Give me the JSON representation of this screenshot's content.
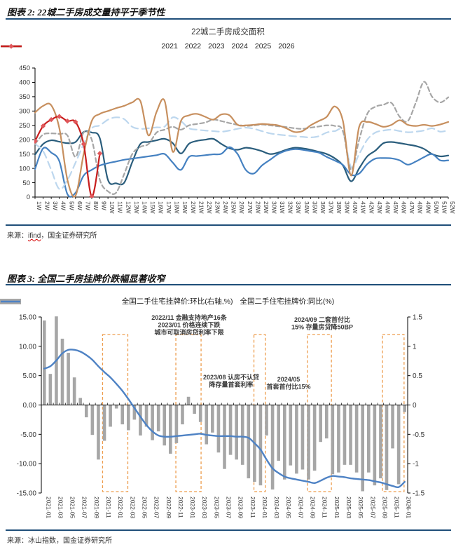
{
  "figure2": {
    "header": "图表 2: 22城二手房成交量持平于季节性",
    "source_prefix": "来源：",
    "source_name": "ifind",
    "source_suffix": "，国金证券研究所"
  },
  "figure3": {
    "header": "图表 3: 全国二手房挂牌价跌幅显著收窄",
    "source_prefix": "来源：",
    "source_text": "冰山指数，国金证券研究所"
  },
  "colors": {
    "rule": "#1f4e79",
    "axis": "#000000",
    "tick_text": "#333333",
    "bar": "#a6a6a6",
    "combo_line": "#4e82c4",
    "highlight_box": "#ed9d4e",
    "annotation_text": "#3b3b3b",
    "marker_2026": "#e0575a"
  },
  "chart_data": [
    {
      "id": "weekly-transaction-chart",
      "type": "line",
      "title": "22城二手房成交面积",
      "ylim": [
        0,
        450
      ],
      "ytick_labels": [
        "450",
        "400",
        "350",
        "300",
        "250",
        "200",
        "150",
        "100",
        "50",
        "0"
      ],
      "yticks": [
        450,
        400,
        350,
        300,
        250,
        200,
        150,
        100,
        50,
        0
      ],
      "grid": false,
      "legend_position": "top",
      "x_labels": [
        "1W",
        "2W",
        "3W",
        "4W",
        "5W",
        "6W",
        "7W",
        "8W",
        "9W",
        "10W",
        "11W",
        "12W",
        "13W",
        "14W",
        "15W",
        "16W",
        "17W",
        "18W",
        "19W",
        "20W",
        "21W",
        "22W",
        "23W",
        "24W",
        "25W",
        "26W",
        "27W",
        "28W",
        "29W",
        "30W",
        "31W",
        "32W",
        "33W",
        "34W",
        "35W",
        "36W",
        "37W",
        "38W",
        "39W",
        "40W",
        "41W",
        "42W",
        "43W",
        "44W",
        "45W",
        "46W",
        "47W",
        "48W",
        "49W",
        "50W",
        "51W",
        "52W"
      ],
      "series": [
        {
          "name": "2021",
          "color": "#2a5d7c",
          "dash": "",
          "marker": "none",
          "values": [
            148,
            185,
            198,
            193,
            188,
            192,
            227,
            225,
            205,
            60,
            48,
            50,
            122,
            185,
            192,
            198,
            203,
            188,
            152,
            186,
            196,
            200,
            203,
            185,
            170,
            165,
            172,
            168,
            160,
            150,
            155,
            165,
            172,
            170,
            165,
            158,
            150,
            135,
            110,
            55,
            100,
            142,
            162,
            188,
            192,
            188,
            183,
            178,
            168,
            150,
            142,
            145
          ]
        },
        {
          "name": "2022",
          "color": "#4581c1",
          "dash": "",
          "marker": "none",
          "values": [
            98,
            170,
            155,
            125,
            10,
            15,
            75,
            95,
            110,
            118,
            124,
            130,
            134,
            138,
            142,
            146,
            150,
            120,
            95,
            140,
            143,
            146,
            149,
            151,
            174,
            150,
            95,
            82,
            110,
            130,
            150,
            162,
            167,
            165,
            160,
            155,
            140,
            127,
            112,
            78,
            82,
            115,
            134,
            136,
            135,
            128,
            113,
            124,
            139,
            150,
            128,
            128
          ]
        },
        {
          "name": "2023",
          "color": "#bdd7ee",
          "dash": "10 6",
          "marker": "none",
          "values": [
            185,
            160,
            95,
            28,
            60,
            120,
            185,
            240,
            250,
            270,
            278,
            272,
            245,
            238,
            240,
            243,
            246,
            278,
            265,
            240,
            235,
            232,
            230,
            228,
            232,
            238,
            242,
            238,
            230,
            222,
            218,
            215,
            212,
            210,
            208,
            212,
            225,
            230,
            228,
            105,
            150,
            200,
            225,
            232,
            235,
            230,
            226,
            228,
            232,
            240,
            228,
            233
          ]
        },
        {
          "name": "2024",
          "color": "#a6a6a6",
          "dash": "6 4",
          "marker": "none",
          "values": [
            185,
            218,
            222,
            220,
            215,
            140,
            225,
            200,
            60,
            20,
            15,
            80,
            150,
            175,
            185,
            225,
            235,
            245,
            235,
            250,
            255,
            260,
            270,
            265,
            258,
            252,
            248,
            250,
            253,
            250,
            247,
            244,
            240,
            238,
            242,
            246,
            250,
            248,
            230,
            95,
            200,
            290,
            315,
            322,
            328,
            280,
            265,
            330,
            402,
            350,
            330,
            348
          ]
        },
        {
          "name": "2025",
          "color": "#c78f5e",
          "dash": "",
          "marker": "none",
          "values": [
            295,
            318,
            320,
            240,
            60,
            5,
            150,
            265,
            290,
            300,
            310,
            318,
            330,
            335,
            215,
            297,
            335,
            158,
            265,
            285,
            290,
            280,
            270,
            288,
            285,
            252,
            250,
            252,
            255,
            253,
            250,
            240,
            227,
            230,
            250,
            265,
            280,
            316,
            265,
            75,
            245,
            262,
            255,
            245,
            252,
            268,
            252,
            248,
            252,
            248,
            253,
            262
          ]
        },
        {
          "name": "2026",
          "color": "#c81e1e",
          "dash": "",
          "marker": "diamond",
          "values": [
            195,
            248,
            270,
            281,
            265,
            262,
            185,
            2,
            152
          ]
        }
      ]
    },
    {
      "id": "listing-price-chart",
      "type": "bar+line",
      "months": 61,
      "left_ylim": [
        -15,
        15
      ],
      "right_ylim": [
        -1.5,
        1.5
      ],
      "left_ytick_labels": [
        "15.00",
        "10.00",
        "5.00",
        "0.00",
        "-5.00",
        "-10.00",
        "-15.00"
      ],
      "left_yticks": [
        15,
        10,
        5,
        0,
        -5,
        -10,
        -15
      ],
      "right_ytick_labels": [
        "1.5",
        "1",
        "0.5",
        "0",
        "-0.5",
        "-1",
        "-1.5"
      ],
      "right_yticks": [
        1.5,
        1,
        0.5,
        0,
        -0.5,
        -1,
        -1.5
      ],
      "x_labels": [
        "2021-01",
        "2021-03",
        "2021-05",
        "2021-07",
        "2021-09",
        "2021-11",
        "2022-01",
        "2022-03",
        "2022-05",
        "2022-07",
        "2022-09",
        "2022-11",
        "2023-01",
        "2023-03",
        "2023-05",
        "2023-07",
        "2023-09",
        "2023-11",
        "2024-01",
        "2024-03",
        "2024-05",
        "2024-07",
        "2024-09",
        "2024-11",
        "2025-01",
        "2025-03",
        "2025-05",
        "2025-07",
        "2025-09",
        "2025-11",
        "2026-01"
      ],
      "x_label_months": [
        0,
        2,
        4,
        6,
        8,
        10,
        12,
        14,
        16,
        18,
        20,
        22,
        24,
        26,
        28,
        30,
        32,
        34,
        36,
        38,
        40,
        42,
        44,
        46,
        48,
        50,
        52,
        54,
        56,
        58,
        60
      ],
      "bar_series": {
        "name": "全国二手住宅挂牌价:环比(右轴,%)",
        "axis": "right",
        "values": [
          1.44,
          0.53,
          1.51,
          1.13,
          0.89,
          0.47,
          0.12,
          -0.21,
          -0.51,
          -0.93,
          -0.61,
          -0.37,
          -0.06,
          -0.33,
          -0.43,
          -0.25,
          -0.52,
          -0.37,
          -0.6,
          -0.45,
          -0.69,
          -0.83,
          -0.65,
          -0.33,
          0.14,
          -0.15,
          -0.29,
          -0.67,
          -0.47,
          -0.81,
          -1.09,
          -0.85,
          -0.93,
          -1.02,
          -1.25,
          -1.31,
          -1.37,
          -0.52,
          -1.44,
          -0.95,
          -1.27,
          -1.03,
          -1.17,
          -1.1,
          -1.27,
          -1.12,
          -0.63,
          -0.57,
          -1.18,
          -1.15,
          -1.02,
          -1.02,
          -1.15,
          -1.47,
          -1.15,
          -1.37,
          -1.25,
          -1.45,
          -0.74,
          -1.35,
          -0.12
        ]
      },
      "line_series": {
        "name": "全国二手住宅挂牌价:同比(%)",
        "axis": "left",
        "values": [
          6.2,
          6.6,
          7.6,
          8.8,
          9.4,
          9.4,
          9.1,
          8.5,
          7.7,
          6.6,
          5.6,
          4.7,
          3.6,
          2.4,
          1.0,
          -0.5,
          -2.0,
          -3.4,
          -4.5,
          -5.2,
          -5.4,
          -5.4,
          -5.3,
          -5.2,
          -5.1,
          -5.0,
          -4.9,
          -5.1,
          -5.2,
          -5.3,
          -5.3,
          -5.3,
          -5.4,
          -5.4,
          -5.6,
          -6.5,
          -7.6,
          -9.3,
          -10.8,
          -11.6,
          -12.2,
          -12.5,
          -12.7,
          -12.9,
          -13.1,
          -13.3,
          -12.9,
          -12.4,
          -12.1,
          -12.2,
          -12.3,
          -12.5,
          -12.6,
          -12.7,
          -12.8,
          -13.0,
          -13.2,
          -13.5,
          -13.8,
          -14.0,
          -13.1
        ]
      },
      "highlight_boxes": [
        {
          "from": 10.2,
          "to": 14.4
        },
        {
          "from": 22.4,
          "to": 26.6
        },
        {
          "from": 35.4,
          "to": 37.3
        },
        {
          "from": 44.3,
          "to": 48.3
        },
        {
          "from": 56.8,
          "to": 60.4
        }
      ],
      "annotations": [
        {
          "x": 270,
          "y": 8,
          "lines": [
            "2022/11 金融支持地产16条",
            "2023/01 价格连续下跌",
            "城市可取消房贷利率下限"
          ]
        },
        {
          "x": 330,
          "y": 93,
          "lines": [
            "2023/08 认房不认贷",
            "降存量首套利率"
          ]
        },
        {
          "x": 412,
          "y": 96,
          "lines": [
            "2024/05",
            "首套首付比15%"
          ]
        },
        {
          "x": 460,
          "y": 11,
          "lines": [
            "2024/09 二套首付比",
            "15% 存量房贷降50BP"
          ]
        }
      ]
    }
  ]
}
